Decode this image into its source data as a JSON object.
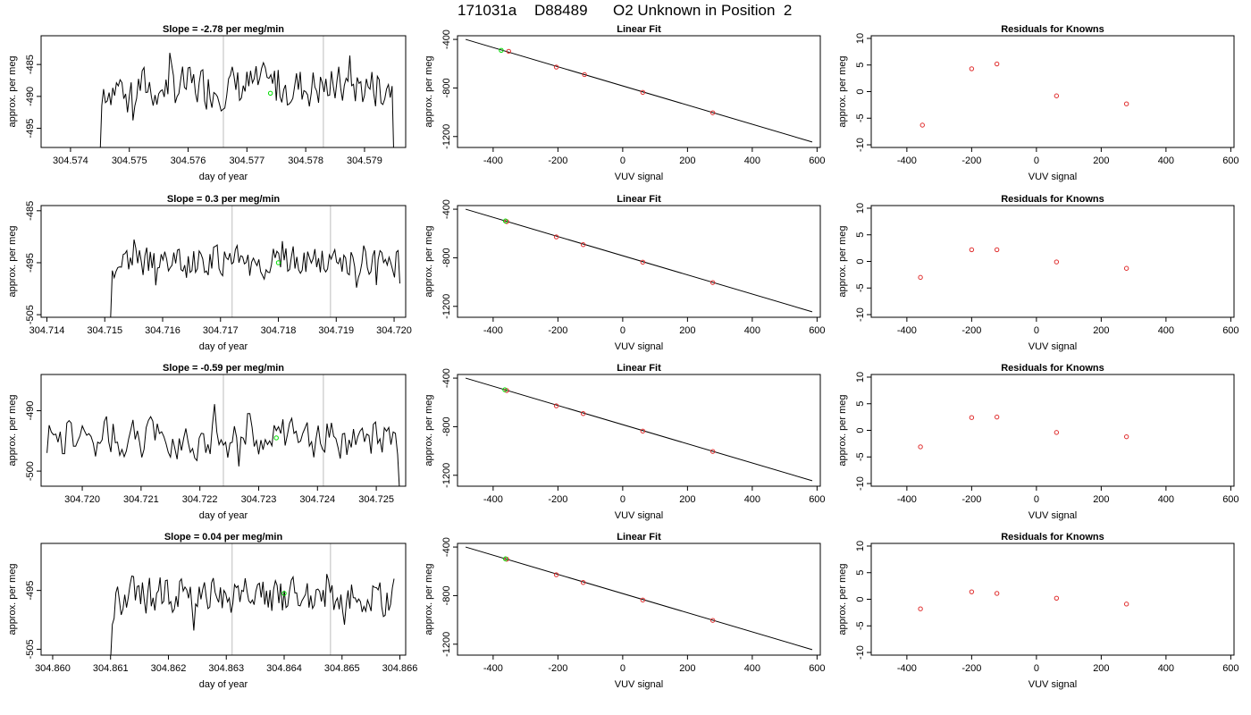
{
  "header": {
    "run_id": "171031a",
    "tank_id": "D88489",
    "description": "O2 Unknown in Position  2"
  },
  "colors": {
    "line": "#000000",
    "marker_green": "#00dd00",
    "known_points": "#e03030",
    "vertical_lines": "#c8c8c8"
  },
  "chart_data": [
    {
      "row": 1,
      "type": "line",
      "title": "Slope =  -2.78  per meg/min",
      "xlabel": "day of year",
      "ylabel": "approx. per meg",
      "xlim": [
        304.5735,
        304.5797
      ],
      "ylim": [
        -498.0,
        -480.5
      ],
      "x_ticks": [
        "304.574",
        "304.575",
        "304.576",
        "304.577",
        "304.578",
        "304.579"
      ],
      "x_tick_values": [
        304.574,
        304.575,
        304.576,
        304.577,
        304.578,
        304.579
      ],
      "y_ticks": [
        "-485",
        "-490",
        "-495"
      ],
      "y_tick_values": [
        -485,
        -490,
        -495
      ],
      "vlines": [
        304.5766,
        304.5783
      ],
      "x_start": 304.5745,
      "x_end": 304.5795,
      "trace_center": -488.5,
      "trace_amp": 2.6,
      "drop_start": -500,
      "drop_end": -500,
      "green_marker": [
        304.5774,
        -489.5
      ]
    },
    {
      "row": 2,
      "type": "line",
      "title": "Slope =  0.3  per meg/min",
      "xlabel": "day of year",
      "ylabel": "approx. per meg",
      "xlim": [
        304.7139,
        304.7202
      ],
      "ylim": [
        -505.5,
        -484.0
      ],
      "x_ticks": [
        "304.714",
        "304.715",
        "304.716",
        "304.717",
        "304.718",
        "304.719",
        "304.720"
      ],
      "x_tick_values": [
        304.714,
        304.715,
        304.716,
        304.717,
        304.718,
        304.719,
        304.72
      ],
      "y_ticks": [
        "-485",
        "-495",
        "-505"
      ],
      "y_tick_values": [
        -485,
        -495,
        -505
      ],
      "vlines": [
        304.7172,
        304.7189
      ],
      "x_start": 304.7151,
      "x_end": 304.7201,
      "trace_center": -495.0,
      "trace_amp": 2.4,
      "drop_start": -506,
      "drop_end": -499,
      "green_marker": [
        304.718,
        -495.0
      ]
    },
    {
      "row": 3,
      "type": "line",
      "title": "Slope =  -0.59  per meg/min",
      "xlabel": "day of year",
      "ylabel": "approx. per meg",
      "xlim": [
        304.7193,
        304.7255
      ],
      "ylim": [
        -502.5,
        -484.0
      ],
      "x_ticks": [
        "304.720",
        "304.721",
        "304.722",
        "304.723",
        "304.724",
        "304.725"
      ],
      "x_tick_values": [
        304.72,
        304.721,
        304.722,
        304.723,
        304.724,
        304.725
      ],
      "y_ticks": [
        "-490",
        "-500"
      ],
      "y_tick_values": [
        -490,
        -500
      ],
      "vlines": [
        304.7224,
        304.7241
      ],
      "x_start": 304.7194,
      "x_end": 304.7254,
      "trace_center": -494.5,
      "trace_amp": 2.6,
      "drop_start": -497,
      "drop_end": -504,
      "green_marker": [
        304.7233,
        -494.5
      ]
    },
    {
      "row": 4,
      "type": "line",
      "title": "Slope =  0.04  per meg/min",
      "xlabel": "day of year",
      "ylabel": "approx. per meg",
      "xlim": [
        304.8598,
        304.8661
      ],
      "ylim": [
        -506.0,
        -487.0
      ],
      "x_ticks": [
        "304.860",
        "304.861",
        "304.862",
        "304.863",
        "304.864",
        "304.865",
        "304.866"
      ],
      "x_tick_values": [
        304.86,
        304.861,
        304.862,
        304.863,
        304.864,
        304.865,
        304.866
      ],
      "y_ticks": [
        "-495",
        "-505"
      ],
      "y_tick_values": [
        -495,
        -505
      ],
      "vlines": [
        304.8631,
        304.8648
      ],
      "x_start": 304.861,
      "x_end": 304.8659,
      "trace_center": -496.0,
      "trace_amp": 2.5,
      "drop_start": -507,
      "drop_end": -493,
      "green_marker": [
        304.864,
        -495.5
      ]
    },
    {
      "row": 1,
      "type": "scatter",
      "title": "Linear Fit",
      "xlabel": "VUV signal",
      "ylabel": "approx. per meg",
      "xlim": [
        -510,
        610
      ],
      "ylim": [
        -1290,
        -370
      ],
      "x_ticks": [
        "-400",
        "-200",
        "0",
        "200",
        "400",
        "600"
      ],
      "x_tick_values": [
        -400,
        -200,
        0,
        200,
        400,
        600
      ],
      "y_ticks": [
        "-400",
        "-800",
        "-1200"
      ],
      "y_tick_values": [
        -400,
        -800,
        -1200
      ],
      "fit_line": [
        [
          -485,
          -400
        ],
        [
          585,
          -1245
        ]
      ],
      "known_points": [
        [
          -352,
          -498
        ],
        [
          -205,
          -628
        ],
        [
          -118,
          -690
        ],
        [
          62,
          -836
        ],
        [
          278,
          -1004
        ]
      ],
      "green_points": [
        [
          -375,
          -490
        ]
      ]
    },
    {
      "row": 2,
      "type": "scatter",
      "title": "Linear Fit",
      "xlabel": "VUV signal",
      "ylabel": "approx. per meg",
      "xlim": [
        -510,
        610
      ],
      "ylim": [
        -1290,
        -370
      ],
      "x_ticks": [
        "-400",
        "-200",
        "0",
        "200",
        "400",
        "600"
      ],
      "x_tick_values": [
        -400,
        -200,
        0,
        200,
        400,
        600
      ],
      "y_ticks": [
        "-400",
        "-800",
        "-1200"
      ],
      "y_tick_values": [
        -400,
        -800,
        -1200
      ],
      "fit_line": [
        [
          -485,
          -400
        ],
        [
          585,
          -1245
        ]
      ],
      "known_points": [
        [
          -358,
          -502
        ],
        [
          -205,
          -628
        ],
        [
          -122,
          -692
        ],
        [
          62,
          -836
        ],
        [
          278,
          -1004
        ]
      ],
      "green_points": [
        [
          -362,
          -497
        ]
      ]
    },
    {
      "row": 3,
      "type": "scatter",
      "title": "Linear Fit",
      "xlabel": "VUV signal",
      "ylabel": "approx. per meg",
      "xlim": [
        -510,
        610
      ],
      "ylim": [
        -1290,
        -370
      ],
      "x_ticks": [
        "-400",
        "-200",
        "0",
        "200",
        "400",
        "600"
      ],
      "x_tick_values": [
        -400,
        -200,
        0,
        200,
        400,
        600
      ],
      "y_ticks": [
        "-400",
        "-800",
        "-1200"
      ],
      "y_tick_values": [
        -400,
        -800,
        -1200
      ],
      "fit_line": [
        [
          -485,
          -400
        ],
        [
          585,
          -1245
        ]
      ],
      "known_points": [
        [
          -358,
          -502
        ],
        [
          -205,
          -628
        ],
        [
          -122,
          -692
        ],
        [
          62,
          -836
        ],
        [
          278,
          -1004
        ]
      ],
      "green_points": [
        [
          -364,
          -496
        ]
      ]
    },
    {
      "row": 4,
      "type": "scatter",
      "title": "Linear Fit",
      "xlabel": "VUV signal",
      "ylabel": "approx. per meg",
      "xlim": [
        -510,
        610
      ],
      "ylim": [
        -1290,
        -370
      ],
      "x_ticks": [
        "-400",
        "-200",
        "0",
        "200",
        "400",
        "600"
      ],
      "x_tick_values": [
        -400,
        -200,
        0,
        200,
        400,
        600
      ],
      "y_ticks": [
        "-400",
        "-800",
        "-1200"
      ],
      "y_tick_values": [
        -400,
        -800,
        -1200
      ],
      "fit_line": [
        [
          -485,
          -400
        ],
        [
          585,
          -1245
        ]
      ],
      "known_points": [
        [
          -358,
          -500
        ],
        [
          -205,
          -628
        ],
        [
          -122,
          -692
        ],
        [
          62,
          -836
        ],
        [
          278,
          -1004
        ]
      ],
      "green_points": [
        [
          -362,
          -497
        ]
      ]
    },
    {
      "row": 1,
      "type": "scatter",
      "title": "Residuals for Knowns",
      "xlabel": "VUV signal",
      "ylabel": "approx. per meg",
      "xlim": [
        -510,
        610
      ],
      "ylim": [
        -10.5,
        10.5
      ],
      "x_ticks": [
        "-400",
        "-200",
        "0",
        "200",
        "400",
        "600"
      ],
      "x_tick_values": [
        -400,
        -200,
        0,
        200,
        400,
        600
      ],
      "y_ticks": [
        "-10",
        "-5",
        "0",
        "5",
        "10"
      ],
      "y_tick_values": [
        -10,
        -5,
        0,
        5,
        10
      ],
      "known_points": [
        [
          -352,
          -6.3
        ],
        [
          -200,
          4.3
        ],
        [
          -122,
          5.2
        ],
        [
          62,
          -0.8
        ],
        [
          278,
          -2.3
        ]
      ]
    },
    {
      "row": 2,
      "type": "scatter",
      "title": "Residuals for Knowns",
      "xlabel": "VUV signal",
      "ylabel": "approx. per meg",
      "xlim": [
        -510,
        610
      ],
      "ylim": [
        -10.5,
        10.5
      ],
      "x_ticks": [
        "-400",
        "-200",
        "0",
        "200",
        "400",
        "600"
      ],
      "x_tick_values": [
        -400,
        -200,
        0,
        200,
        400,
        600
      ],
      "y_ticks": [
        "-10",
        "-5",
        "0",
        "5",
        "10"
      ],
      "y_tick_values": [
        -10,
        -5,
        0,
        5,
        10
      ],
      "known_points": [
        [
          -358,
          -3.0
        ],
        [
          -200,
          2.2
        ],
        [
          -122,
          2.2
        ],
        [
          62,
          -0.1
        ],
        [
          278,
          -1.3
        ]
      ]
    },
    {
      "row": 3,
      "type": "scatter",
      "title": "Residuals for Knowns",
      "xlabel": "VUV signal",
      "ylabel": "approx. per meg",
      "xlim": [
        -510,
        610
      ],
      "ylim": [
        -10.5,
        10.5
      ],
      "x_ticks": [
        "-400",
        "-200",
        "0",
        "200",
        "400",
        "600"
      ],
      "x_tick_values": [
        -400,
        -200,
        0,
        200,
        400,
        600
      ],
      "y_ticks": [
        "-10",
        "-5",
        "0",
        "5",
        "10"
      ],
      "y_tick_values": [
        -10,
        -5,
        0,
        5,
        10
      ],
      "known_points": [
        [
          -358,
          -3.1
        ],
        [
          -200,
          2.4
        ],
        [
          -122,
          2.5
        ],
        [
          62,
          -0.4
        ],
        [
          278,
          -1.2
        ]
      ]
    },
    {
      "row": 4,
      "type": "scatter",
      "title": "Residuals for Knowns",
      "xlabel": "VUV signal",
      "ylabel": "approx. per meg",
      "xlim": [
        -510,
        610
      ],
      "ylim": [
        -10.5,
        10.5
      ],
      "x_ticks": [
        "-400",
        "-200",
        "0",
        "200",
        "400",
        "600"
      ],
      "x_tick_values": [
        -400,
        -200,
        0,
        200,
        400,
        600
      ],
      "y_ticks": [
        "-10",
        "-5",
        "0",
        "5",
        "10"
      ],
      "y_tick_values": [
        -10,
        -5,
        0,
        5,
        10
      ],
      "known_points": [
        [
          -358,
          -1.8
        ],
        [
          -200,
          1.4
        ],
        [
          -122,
          1.1
        ],
        [
          62,
          0.2
        ],
        [
          278,
          -0.9
        ]
      ]
    }
  ]
}
